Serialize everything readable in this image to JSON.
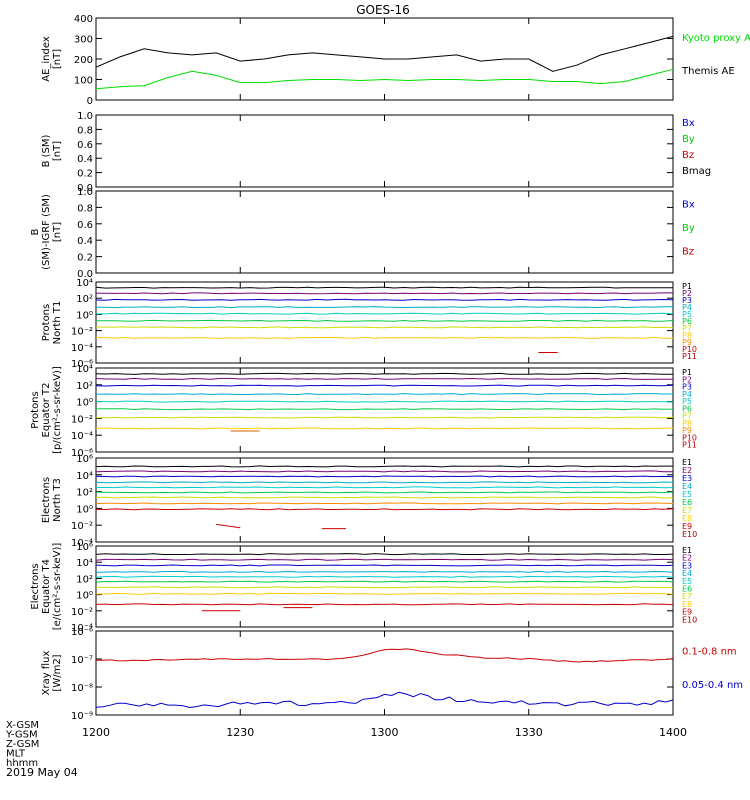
{
  "title": "GOES-16",
  "date_label": "2019 May 04",
  "footer_labels": [
    "X-GSM",
    "Y-GSM",
    "Z-GSM",
    "MLT",
    "hhmm"
  ],
  "x_ticks": [
    "1200",
    "1230",
    "1300",
    "1330",
    "1400"
  ],
  "chart_data": [
    {
      "type": "line",
      "ylabel": "AE_index [nT]",
      "ylim": [
        0,
        400
      ],
      "yscale": "linear",
      "yticks": [
        "0",
        "100",
        "200",
        "300",
        "400"
      ],
      "x": [
        0,
        5,
        10,
        15,
        20,
        25,
        30,
        35,
        40,
        45,
        50,
        55,
        60,
        65,
        70,
        75,
        80,
        85,
        90,
        95,
        100,
        105,
        110,
        115,
        120
      ],
      "series": [
        {
          "name": "Kyoto proxy AE",
          "color": "#00dd00",
          "values": [
            55,
            65,
            70,
            110,
            140,
            120,
            85,
            85,
            95,
            100,
            100,
            95,
            100,
            95,
            100,
            100,
            95,
            100,
            100,
            90,
            90,
            80,
            90,
            120,
            150
          ]
        },
        {
          "name": "Themis AE",
          "color": "#000000",
          "values": [
            160,
            210,
            250,
            230,
            220,
            230,
            190,
            200,
            220,
            230,
            220,
            210,
            200,
            200,
            210,
            220,
            190,
            200,
            200,
            140,
            170,
            220,
            250,
            280,
            310
          ]
        }
      ],
      "legend": [
        {
          "label": "Kyoto proxy AE",
          "color": "#00dd00"
        },
        {
          "label": "Themis AE",
          "color": "#000000"
        }
      ]
    },
    {
      "type": "line",
      "ylabel": "B (SM) [nT]",
      "ylim": [
        0,
        1
      ],
      "yscale": "linear",
      "yticks": [
        "0.0",
        "0.2",
        "0.4",
        "0.6",
        "0.8",
        "1.0"
      ],
      "series": [],
      "legend": [
        {
          "label": "Bx",
          "color": "#0000cc"
        },
        {
          "label": "By",
          "color": "#00cc00"
        },
        {
          "label": "Bz",
          "color": "#cc0000"
        },
        {
          "label": "Bmag",
          "color": "#000000"
        }
      ]
    },
    {
      "type": "line",
      "ylabel": "B (SM)-IGRF (SM) [nT]",
      "ylim": [
        0,
        1
      ],
      "yscale": "linear",
      "yticks": [
        "0.0",
        "0.2",
        "0.4",
        "0.6",
        "0.8",
        "1.0"
      ],
      "series": [],
      "legend": [
        {
          "label": "Bx",
          "color": "#0000cc"
        },
        {
          "label": "By",
          "color": "#00cc00"
        },
        {
          "label": "Bz",
          "color": "#cc0000"
        }
      ]
    },
    {
      "type": "line",
      "ylabel": "Protons North T1",
      "yscale": "log",
      "ylim_exp": [
        -6,
        4
      ],
      "yticks_exp": [
        -6,
        -4,
        -2,
        0,
        2,
        4
      ],
      "legend": [
        {
          "label": "P1",
          "color": "#000000"
        },
        {
          "label": "P2",
          "color": "#7a007a"
        },
        {
          "label": "P3",
          "color": "#0000cc"
        },
        {
          "label": "P4",
          "color": "#00aacc"
        },
        {
          "label": "P5",
          "color": "#00cccc"
        },
        {
          "label": "P6",
          "color": "#00cc44"
        },
        {
          "label": "P7",
          "color": "#ccdd00"
        },
        {
          "label": "P8",
          "color": "#ffcc00"
        },
        {
          "label": "P9",
          "color": "#ff8800"
        },
        {
          "label": "P10",
          "color": "#cc0000"
        },
        {
          "label": "P11",
          "color": "#aa0000"
        }
      ],
      "series": [
        {
          "name": "P1",
          "color": "#000000",
          "level_exp": 3.3
        },
        {
          "name": "P2",
          "color": "#7a007a",
          "level_exp": 2.6
        },
        {
          "name": "P3",
          "color": "#0000cc",
          "level_exp": 1.8
        },
        {
          "name": "P4",
          "color": "#00aacc",
          "level_exp": 0.9
        },
        {
          "name": "P5",
          "color": "#00cccc",
          "level_exp": 0.1
        },
        {
          "name": "P6",
          "color": "#00cc44",
          "level_exp": -0.8
        },
        {
          "name": "P7",
          "color": "#ccdd00",
          "level_exp": -1.6
        },
        {
          "name": "P8",
          "color": "#ffcc00",
          "level_exp": -2.9
        },
        {
          "name": "P10",
          "color": "#cc0000",
          "x": [
            92,
            96
          ],
          "level_exp": -4.7
        }
      ]
    },
    {
      "type": "line",
      "ylabel": "Protons Equator T2 [p/(cm²-s-sr-keV)]",
      "yscale": "log",
      "ylim_exp": [
        -6,
        4
      ],
      "yticks_exp": [
        -6,
        -4,
        -2,
        0,
        2,
        4
      ],
      "legend": [
        {
          "label": "P1",
          "color": "#000000"
        },
        {
          "label": "P2",
          "color": "#7a007a"
        },
        {
          "label": "P3",
          "color": "#0000cc"
        },
        {
          "label": "P4",
          "color": "#00aacc"
        },
        {
          "label": "P5",
          "color": "#00cccc"
        },
        {
          "label": "P6",
          "color": "#00cc44"
        },
        {
          "label": "P7",
          "color": "#ccdd00"
        },
        {
          "label": "P8",
          "color": "#ffcc00"
        },
        {
          "label": "P9",
          "color": "#ff8800"
        },
        {
          "label": "P10",
          "color": "#cc0000"
        },
        {
          "label": "P11",
          "color": "#aa0000"
        }
      ],
      "series": [
        {
          "name": "P1",
          "color": "#000000",
          "level_exp": 3.3
        },
        {
          "name": "P2",
          "color": "#7a007a",
          "level_exp": 2.7
        },
        {
          "name": "P3",
          "color": "#0000cc",
          "level_exp": 1.9
        },
        {
          "name": "P4",
          "color": "#00aacc",
          "level_exp": 0.9
        },
        {
          "name": "P5",
          "color": "#00cccc",
          "level_exp": 0.0
        },
        {
          "name": "P6",
          "color": "#00cc44",
          "level_exp": -0.9
        },
        {
          "name": "P7",
          "color": "#ccdd00",
          "level_exp": -1.9
        },
        {
          "name": "P8",
          "color": "#ffcc00",
          "level_exp": -3.2
        },
        {
          "name": "P9",
          "color": "#cc6600",
          "x": [
            28,
            34
          ],
          "level_exp": -3.5
        }
      ]
    },
    {
      "type": "line",
      "ylabel": "Electrons North T3",
      "yscale": "log",
      "ylim_exp": [
        -4,
        6
      ],
      "yticks_exp": [
        -4,
        -2,
        0,
        2,
        4,
        6
      ],
      "legend": [
        {
          "label": "E1",
          "color": "#000000"
        },
        {
          "label": "E2",
          "color": "#7a007a"
        },
        {
          "label": "E3",
          "color": "#0000cc"
        },
        {
          "label": "E4",
          "color": "#00aacc"
        },
        {
          "label": "E5",
          "color": "#00cccc"
        },
        {
          "label": "E6",
          "color": "#00cc44"
        },
        {
          "label": "E7",
          "color": "#ccdd00"
        },
        {
          "label": "E8",
          "color": "#ffcc00"
        },
        {
          "label": "E9",
          "color": "#cc0000"
        },
        {
          "label": "E10",
          "color": "#aa0000"
        }
      ],
      "series": [
        {
          "name": "E1",
          "color": "#000000",
          "level_exp": 5.0
        },
        {
          "name": "E2",
          "color": "#7a007a",
          "level_exp": 4.4
        },
        {
          "name": "E3",
          "color": "#0000cc",
          "level_exp": 3.8
        },
        {
          "name": "E4",
          "color": "#00aacc",
          "level_exp": 3.1
        },
        {
          "name": "E5",
          "color": "#00cccc",
          "level_exp": 2.5
        },
        {
          "name": "E6",
          "color": "#00cc44",
          "level_exp": 1.9
        },
        {
          "name": "E7",
          "color": "#ccdd00",
          "level_exp": 1.3
        },
        {
          "name": "E8",
          "color": "#ff8800",
          "level_exp": 0.6
        },
        {
          "name": "E9",
          "color": "#cc0000",
          "level_exp": -0.1
        },
        {
          "name": "E9b",
          "color": "#cc0000",
          "x": [
            25,
            30
          ],
          "level_exp": -1.9
        },
        {
          "name": "E10",
          "color": "#cc0000",
          "x": [
            47,
            52
          ],
          "level_exp": -2.4
        }
      ]
    },
    {
      "type": "line",
      "ylabel": "Electrons Equator T4 [e/(cm²-s-sr-keV)]",
      "yscale": "log",
      "ylim_exp": [
        -4,
        6
      ],
      "yticks_exp": [
        -4,
        -2,
        0,
        2,
        4,
        6
      ],
      "legend": [
        {
          "label": "E1",
          "color": "#000000"
        },
        {
          "label": "E2",
          "color": "#7a007a"
        },
        {
          "label": "E3",
          "color": "#0000cc"
        },
        {
          "label": "E4",
          "color": "#00aacc"
        },
        {
          "label": "E5",
          "color": "#00cccc"
        },
        {
          "label": "E6",
          "color": "#00cc44"
        },
        {
          "label": "E7",
          "color": "#ccdd00"
        },
        {
          "label": "E8",
          "color": "#ffcc00"
        },
        {
          "label": "E9",
          "color": "#cc0000"
        },
        {
          "label": "E10",
          "color": "#aa0000"
        }
      ],
      "series": [
        {
          "name": "E1",
          "color": "#000000",
          "level_exp": 5.0
        },
        {
          "name": "E2",
          "color": "#7a007a",
          "level_exp": 4.3
        },
        {
          "name": "E3",
          "color": "#0000cc",
          "level_exp": 3.6
        },
        {
          "name": "E4",
          "color": "#00aacc",
          "level_exp": 2.8
        },
        {
          "name": "E5",
          "color": "#00cccc",
          "level_exp": 2.2
        },
        {
          "name": "E6",
          "color": "#00cc44",
          "level_exp": 1.6
        },
        {
          "name": "E7",
          "color": "#ccdd00",
          "level_exp": 0.9
        },
        {
          "name": "E8",
          "color": "#ffcc00",
          "level_exp": 0.1
        },
        {
          "name": "E9",
          "color": "#cc0000",
          "level_exp": -1.2
        },
        {
          "name": "E9b",
          "color": "#cc0000",
          "x": [
            22,
            30
          ],
          "level_exp": -2.0
        },
        {
          "name": "E10",
          "color": "#cc0000",
          "x": [
            39,
            45
          ],
          "level_exp": -1.6
        }
      ]
    },
    {
      "type": "line",
      "ylabel": "Xray flux [W/m2]",
      "yscale": "log",
      "ylim_exp": [
        -9,
        -6
      ],
      "ytick_labels": [
        "10⁻⁹",
        "10⁻⁸",
        "10⁻⁷",
        "10⁻⁶"
      ],
      "legend": [
        {
          "label": "0.1-0.8 nm",
          "color": "#cc0000"
        },
        {
          "label": "0.05-0.4 nm",
          "color": "#0000cc"
        }
      ],
      "x": [
        0,
        10,
        20,
        30,
        40,
        50,
        55,
        60,
        65,
        70,
        80,
        90,
        100,
        110,
        120
      ],
      "series": [
        {
          "name": "0.1-0.8 nm",
          "color": "#cc0000",
          "values_exp": [
            -7.05,
            -7.05,
            -7.0,
            -7.0,
            -7.0,
            -7.0,
            -6.9,
            -6.65,
            -6.65,
            -6.8,
            -6.95,
            -7.0,
            -7.1,
            -7.05,
            -7.0
          ]
        },
        {
          "name": "0.05-0.4 nm",
          "color": "#0000cc",
          "values_exp": [
            -8.7,
            -8.6,
            -8.7,
            -8.6,
            -8.6,
            -8.6,
            -8.5,
            -8.2,
            -8.25,
            -8.4,
            -8.5,
            -8.55,
            -8.6,
            -8.6,
            -8.5
          ]
        }
      ]
    }
  ]
}
